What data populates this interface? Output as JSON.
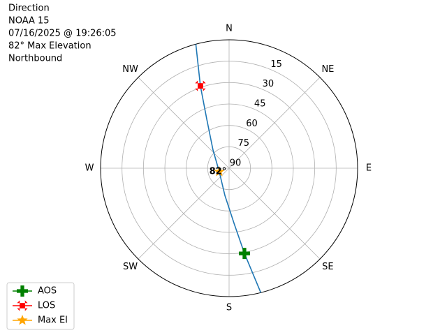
{
  "chart_data": {
    "type": "polar",
    "title_lines": [
      "Direction",
      "NOAA 15",
      "07/16/2025 @ 19:26:05",
      "82° Max Elevation",
      "Northbound"
    ],
    "xticks": [
      {
        "value": 0,
        "label": "N"
      },
      {
        "value": 45,
        "label": "NE"
      },
      {
        "value": 90,
        "label": "E"
      },
      {
        "value": 135,
        "label": "SE"
      },
      {
        "value": 180,
        "label": "S"
      },
      {
        "value": 225,
        "label": "SW"
      },
      {
        "value": 270,
        "label": "W"
      },
      {
        "value": 315,
        "label": "NW"
      }
    ],
    "ylim": [
      90,
      0
    ],
    "yticks": [
      90,
      75,
      60,
      45,
      30,
      15
    ],
    "grid": true,
    "track": {
      "color": "#1f77b4",
      "x": [
        345.0,
        340.8,
        335.7,
        318.5,
        250.3,
        188.7,
        174.9,
        169.8,
        165.7
      ],
      "values": [
        0,
        28.9,
        51.9,
        73.0,
        82.7,
        70.7,
        51.2,
        29.3,
        0
      ]
    },
    "series": [
      {
        "name": "AOS",
        "color": "#008000",
        "marker": "plus",
        "x": [
          169.8
        ],
        "values": [
          29.3
        ]
      },
      {
        "name": "LOS",
        "color": "#ff0000",
        "marker": "x",
        "x": [
          340.8
        ],
        "values": [
          28.9
        ]
      },
      {
        "name": "Max El",
        "color": "#ffa500",
        "marker": "star",
        "x": [
          250.3
        ],
        "values": [
          82.7
        ]
      }
    ],
    "annotation": "82°",
    "legend": "lower left"
  }
}
